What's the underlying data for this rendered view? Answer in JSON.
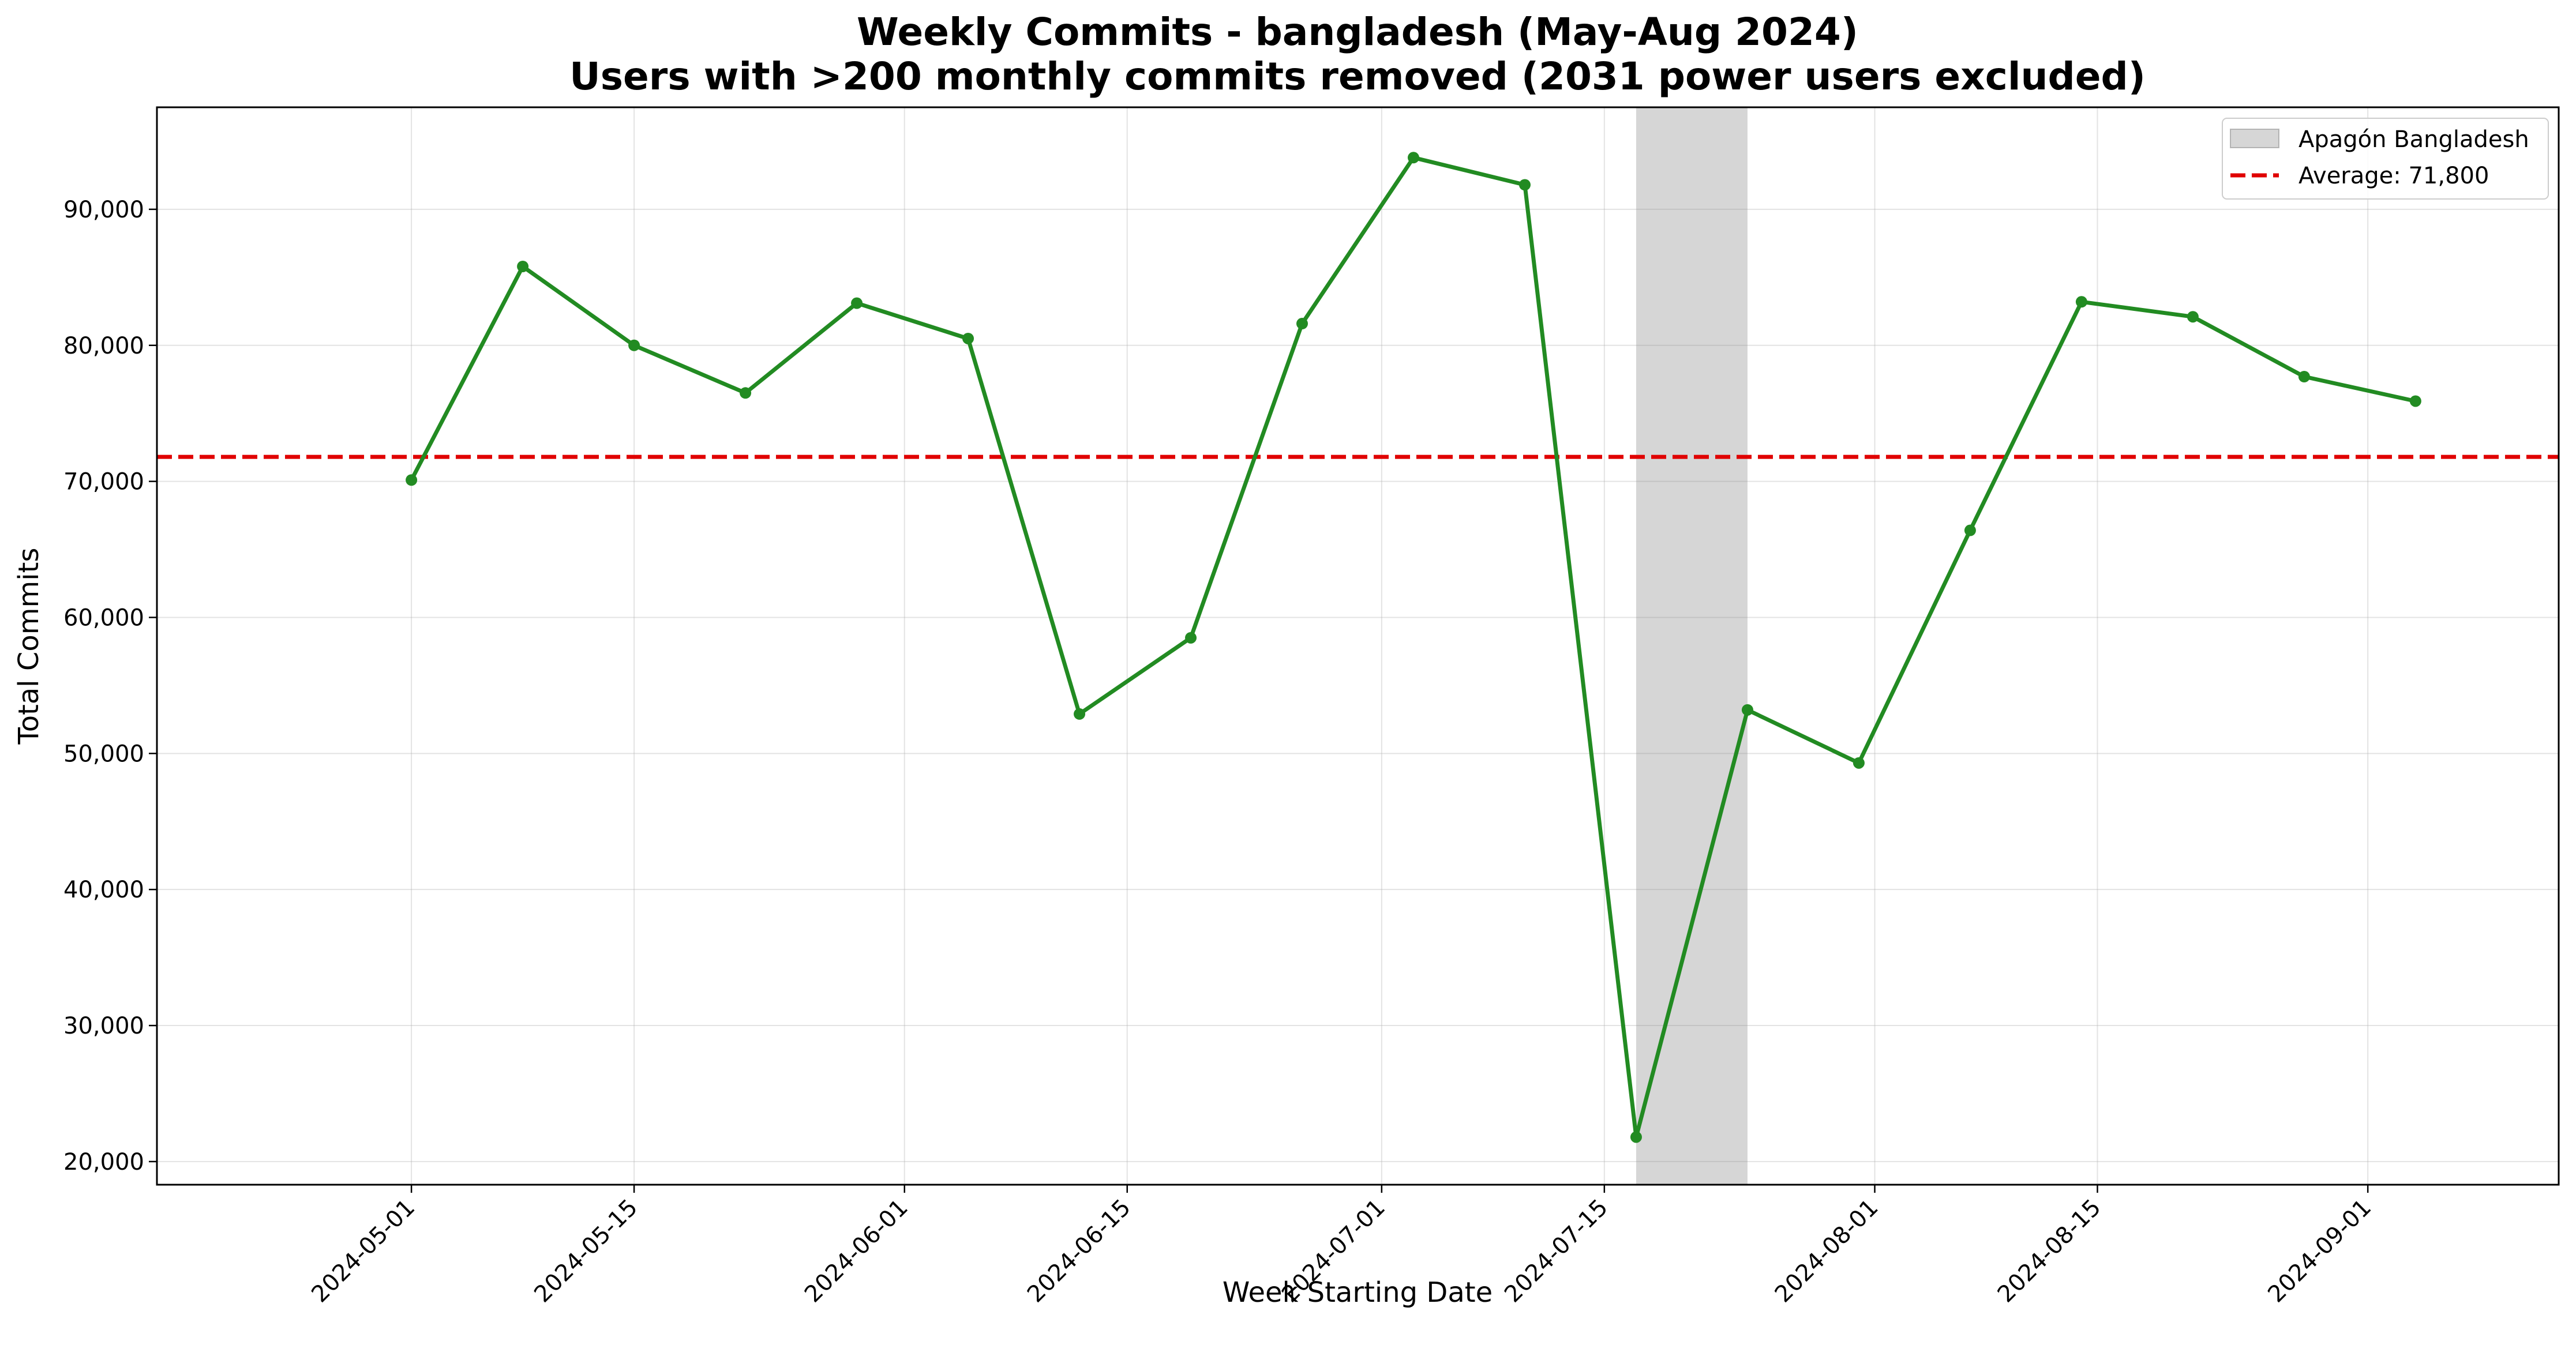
{
  "chart_data": {
    "type": "line",
    "title": "Weekly Commits - bangladesh (May-Aug 2024)",
    "subtitle": "Users with >200 monthly commits removed (2031 power users excluded)",
    "xlabel": "Week Starting Date",
    "ylabel": "Total Commits",
    "x_tick_labels": [
      "2024-05-01",
      "2024-05-15",
      "2024-06-01",
      "2024-06-15",
      "2024-07-01",
      "2024-07-15",
      "2024-08-01",
      "2024-08-15",
      "2024-09-01"
    ],
    "y_tick_labels": [
      "20,000",
      "30,000",
      "40,000",
      "50,000",
      "60,000",
      "70,000",
      "80,000",
      "90,000"
    ],
    "y_ticks": [
      20000,
      30000,
      40000,
      50000,
      60000,
      70000,
      80000,
      90000
    ],
    "xlim": [
      "2024-04-15",
      "2024-09-13"
    ],
    "ylim": [
      18300,
      97500
    ],
    "grid": true,
    "legend_position": "top-right",
    "series": [
      {
        "color": "#228b22",
        "x": [
          "2024-05-01",
          "2024-05-08",
          "2024-05-15",
          "2024-05-22",
          "2024-05-29",
          "2024-06-05",
          "2024-06-12",
          "2024-06-19",
          "2024-06-26",
          "2024-07-03",
          "2024-07-10",
          "2024-07-17",
          "2024-07-24",
          "2024-07-31",
          "2024-08-07",
          "2024-08-14",
          "2024-08-21",
          "2024-08-28",
          "2024-09-04"
        ],
        "values": [
          70100,
          85800,
          80000,
          76500,
          83100,
          80500,
          52900,
          58500,
          81600,
          93800,
          91800,
          21800,
          53200,
          49300,
          66400,
          83200,
          82100,
          77700,
          75900
        ]
      }
    ],
    "shaded_region": {
      "label": "Apagón Bangladesh",
      "x_start": "2024-07-17",
      "x_end": "2024-07-24",
      "color": "#808080"
    },
    "average_line": {
      "label": "Average: 71,800",
      "value": 71800,
      "color": "#e00000"
    }
  }
}
